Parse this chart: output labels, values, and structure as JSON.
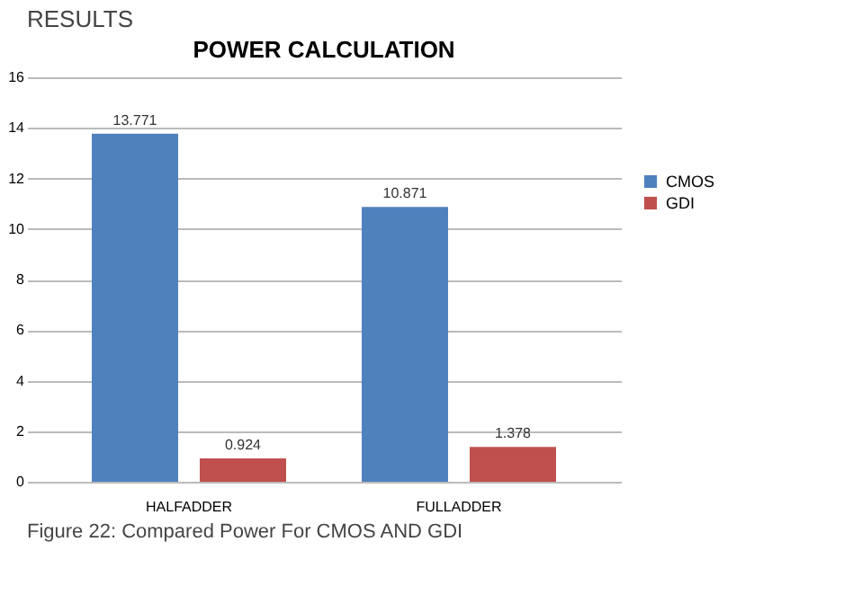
{
  "chart_data": {
    "type": "bar",
    "title": "POWER CALCULATION",
    "categories": [
      "HALFADDER",
      "FULLADDER"
    ],
    "series": [
      {
        "name": "CMOS",
        "color": "#4f81bd",
        "values": [
          13.771,
          10.871
        ]
      },
      {
        "name": "GDI",
        "color": "#c0504d",
        "values": [
          0.924,
          1.378
        ]
      }
    ],
    "ylim": [
      0,
      16
    ],
    "yticks": [
      0,
      2,
      4,
      6,
      8,
      10,
      12,
      14,
      16
    ],
    "grid": "y",
    "legend": "right",
    "data_labels": true,
    "annotations": [
      "RESULTS",
      "Figure 22: Compared Power For CMOS AND GDI"
    ]
  }
}
